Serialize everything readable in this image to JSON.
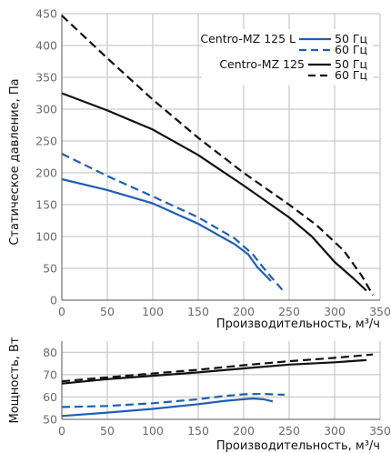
{
  "chart_data": [
    {
      "type": "line",
      "xlabel": "Производительность, м³/ч",
      "ylabel": "Статическое давление, Па",
      "xlim": [
        0,
        350
      ],
      "ylim": [
        0,
        450
      ],
      "x_ticks": [
        "0",
        "50",
        "100",
        "150",
        "200",
        "250",
        "300",
        "350"
      ],
      "y_ticks": [
        "0",
        "50",
        "100",
        "150",
        "200",
        "250",
        "300",
        "350",
        "400",
        "450"
      ],
      "grid": true,
      "legend_position": "top-right",
      "legend": {
        "models": [
          "Centro-MZ 125 L",
          "Centro-MZ 125"
        ],
        "freq_50": "50 Гц",
        "freq_60": "60 Гц"
      },
      "series": [
        {
          "model": "Centro-MZ 125 L",
          "frequency": "50 Гц",
          "color": "#1f5fb4",
          "dashed": false,
          "x": [
            0,
            50,
            100,
            150,
            190,
            205,
            215,
            230
          ],
          "y": [
            190,
            173,
            152,
            120,
            88,
            72,
            52,
            30
          ]
        },
        {
          "model": "Centro-MZ 125 L",
          "frequency": "60 Гц",
          "color": "#1f5fb4",
          "dashed": true,
          "x": [
            0,
            50,
            100,
            150,
            190,
            210,
            225,
            245
          ],
          "y": [
            230,
            195,
            163,
            130,
            97,
            72,
            45,
            12
          ]
        },
        {
          "model": "Centro-MZ 125",
          "frequency": "50 Гц",
          "color": "#111111",
          "dashed": false,
          "x": [
            0,
            50,
            100,
            150,
            200,
            250,
            275,
            300,
            320,
            335
          ],
          "y": [
            325,
            298,
            268,
            228,
            180,
            130,
            100,
            60,
            35,
            15
          ]
        },
        {
          "model": "Centro-MZ 125",
          "frequency": "60 Гц",
          "color": "#111111",
          "dashed": true,
          "x": [
            0,
            50,
            100,
            150,
            200,
            250,
            280,
            310,
            330,
            342
          ],
          "y": [
            447,
            380,
            315,
            255,
            200,
            150,
            118,
            78,
            38,
            8
          ]
        }
      ]
    },
    {
      "type": "line",
      "xlabel": "Производительность, м³/ч",
      "ylabel": "Мощность, Вт",
      "xlim": [
        0,
        350
      ],
      "ylim": [
        50,
        85
      ],
      "x_ticks": [
        "0",
        "50",
        "100",
        "150",
        "200",
        "250",
        "300",
        "350"
      ],
      "y_ticks": [
        "50",
        "60",
        "70",
        "80"
      ],
      "grid": true,
      "series": [
        {
          "model": "Centro-MZ 125 L",
          "frequency": "50 Гц",
          "color": "#1f5fb4",
          "dashed": false,
          "x": [
            0,
            50,
            100,
            150,
            180,
            200,
            210,
            222,
            232
          ],
          "y": [
            51.5,
            53,
            54.7,
            56.8,
            58.3,
            59,
            59.3,
            59,
            58
          ]
        },
        {
          "model": "Centro-MZ 125 L",
          "frequency": "60 Гц",
          "color": "#1f5fb4",
          "dashed": true,
          "x": [
            0,
            50,
            100,
            150,
            180,
            200,
            220,
            245
          ],
          "y": [
            55.5,
            56,
            57.2,
            59,
            60.5,
            61.2,
            61.4,
            61
          ]
        },
        {
          "model": "Centro-MZ 125",
          "frequency": "50 Гц",
          "color": "#111111",
          "dashed": false,
          "x": [
            0,
            50,
            100,
            150,
            200,
            250,
            300,
            335
          ],
          "y": [
            66,
            68,
            69.5,
            71,
            72.8,
            74.5,
            75.5,
            76.5
          ]
        },
        {
          "model": "Centro-MZ 125",
          "frequency": "60 Гц",
          "color": "#111111",
          "dashed": true,
          "x": [
            0,
            50,
            100,
            150,
            200,
            250,
            300,
            342
          ],
          "y": [
            67,
            68.8,
            70.5,
            72.2,
            74.2,
            76,
            77.5,
            79
          ]
        }
      ]
    }
  ]
}
